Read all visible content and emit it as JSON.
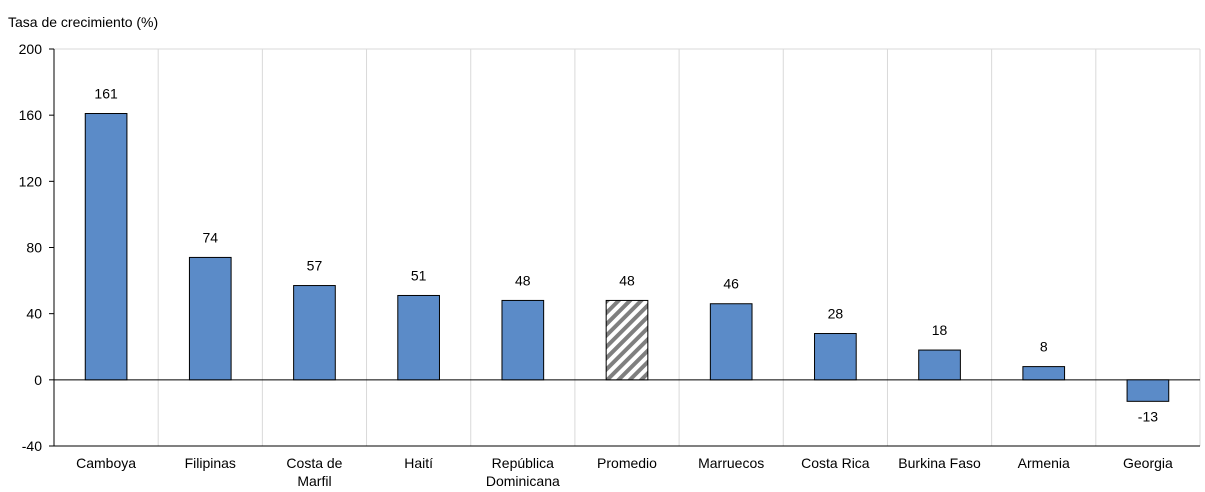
{
  "chart_data": {
    "type": "bar",
    "ylabel": "Tasa de crecimiento (%)",
    "ylim": [
      -40,
      200
    ],
    "yticks": [
      200,
      160,
      120,
      80,
      40,
      0,
      -40
    ],
    "grid": "vertical category separators only",
    "categories": [
      [
        "Camboya"
      ],
      [
        "Filipinas"
      ],
      [
        "Costa de",
        "Marfil"
      ],
      [
        "Haití"
      ],
      [
        "República",
        "Dominicana"
      ],
      [
        "Promedio"
      ],
      [
        "Marruecos"
      ],
      [
        "Costa Rica"
      ],
      [
        "Burkina Faso"
      ],
      [
        "Armenia"
      ],
      [
        "Georgia"
      ]
    ],
    "values": [
      161,
      74,
      57,
      51,
      48,
      48,
      46,
      28,
      18,
      8,
      -13
    ],
    "value_labels": [
      "161",
      "74",
      "57",
      "51",
      "48",
      "48",
      "46",
      "28",
      "18",
      "8",
      "-13"
    ],
    "highlight_category": "Promedio",
    "colors": {
      "bar": "#5b8bc8",
      "bar_stroke": "#000000",
      "highlight_stripe": "#7f7f7f",
      "grid": "#d9d9d9"
    }
  }
}
